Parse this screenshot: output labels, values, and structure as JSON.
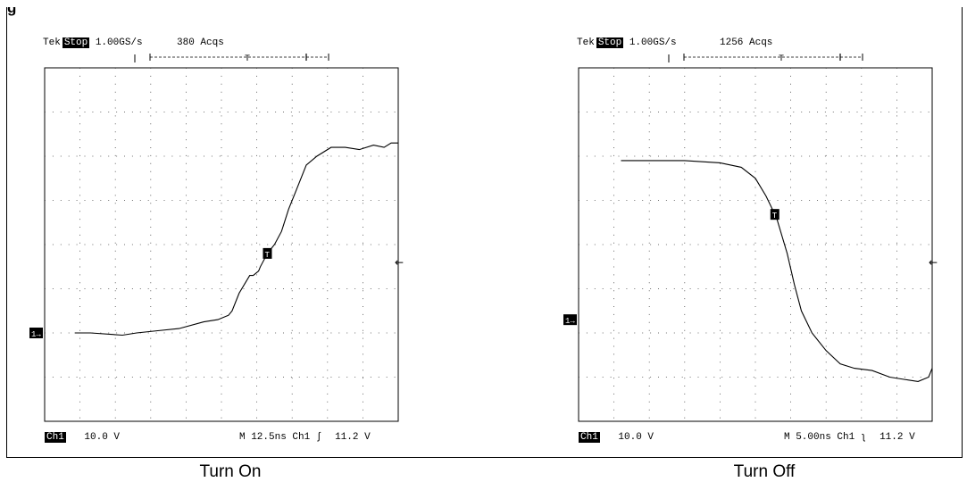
{
  "page": {
    "caption_top": "g"
  },
  "chart_data": [
    {
      "type": "line",
      "title": "",
      "caption": "Turn On",
      "header": {
        "brand": "Tek",
        "state": "Stop",
        "rate": "1.00GS/s",
        "acqs": "380 Acqs"
      },
      "footer": {
        "channel": "Ch1",
        "scale": "10.0 V",
        "timebase": "M 12.5ns",
        "trigger_src": "Ch1",
        "trigger_slope": "∫",
        "trigger_level": "11.2 V"
      },
      "grid": true,
      "divisions": {
        "x": 10,
        "y": 8
      },
      "xlim": [
        0,
        10
      ],
      "ylim": [
        0,
        8
      ],
      "ground_marker_div": 2.0,
      "trigger_marker_div": 3.6,
      "series": [
        {
          "x": [
            0.85,
            1.3,
            2.2,
            2.6,
            3.2,
            3.8,
            4.5,
            4.9,
            5.2,
            5.3,
            5.5,
            5.8,
            5.9,
            6.05,
            6.1,
            6.3,
            6.5,
            6.7,
            6.9,
            7.1,
            7.4,
            7.7,
            8.1,
            8.5,
            8.9,
            9.3,
            9.6,
            9.8,
            10.0
          ],
          "y": [
            2.0,
            2.0,
            1.95,
            2.0,
            2.05,
            2.1,
            2.25,
            2.3,
            2.4,
            2.5,
            2.9,
            3.3,
            3.3,
            3.4,
            3.5,
            3.8,
            4.0,
            4.3,
            4.8,
            5.2,
            5.8,
            6.0,
            6.2,
            6.2,
            6.15,
            6.25,
            6.2,
            6.3,
            6.3
          ]
        }
      ]
    },
    {
      "type": "line",
      "title": "",
      "caption": "Turn Off",
      "header": {
        "brand": "Tek",
        "state": "Stop",
        "rate": "1.00GS/s",
        "acqs": "1256 Acqs"
      },
      "footer": {
        "channel": "Ch1",
        "scale": "10.0 V",
        "timebase": "M 5.00ns",
        "trigger_src": "Ch1",
        "trigger_slope": "ʅ",
        "trigger_level": "11.2 V"
      },
      "grid": true,
      "divisions": {
        "x": 10,
        "y": 8
      },
      "xlim": [
        0,
        10
      ],
      "ylim": [
        0,
        8
      ],
      "ground_marker_div": 2.3,
      "trigger_marker_div": 3.6,
      "series": [
        {
          "x": [
            1.2,
            2.0,
            3.0,
            4.0,
            4.6,
            5.0,
            5.3,
            5.6,
            5.9,
            6.1,
            6.3,
            6.6,
            7.0,
            7.4,
            7.8,
            8.3,
            8.8,
            9.2,
            9.6,
            9.9,
            10.0
          ],
          "y": [
            5.9,
            5.9,
            5.9,
            5.85,
            5.75,
            5.5,
            5.1,
            4.6,
            3.8,
            3.1,
            2.5,
            2.0,
            1.6,
            1.3,
            1.2,
            1.15,
            1.0,
            0.95,
            0.9,
            1.0,
            1.2
          ]
        }
      ]
    }
  ]
}
